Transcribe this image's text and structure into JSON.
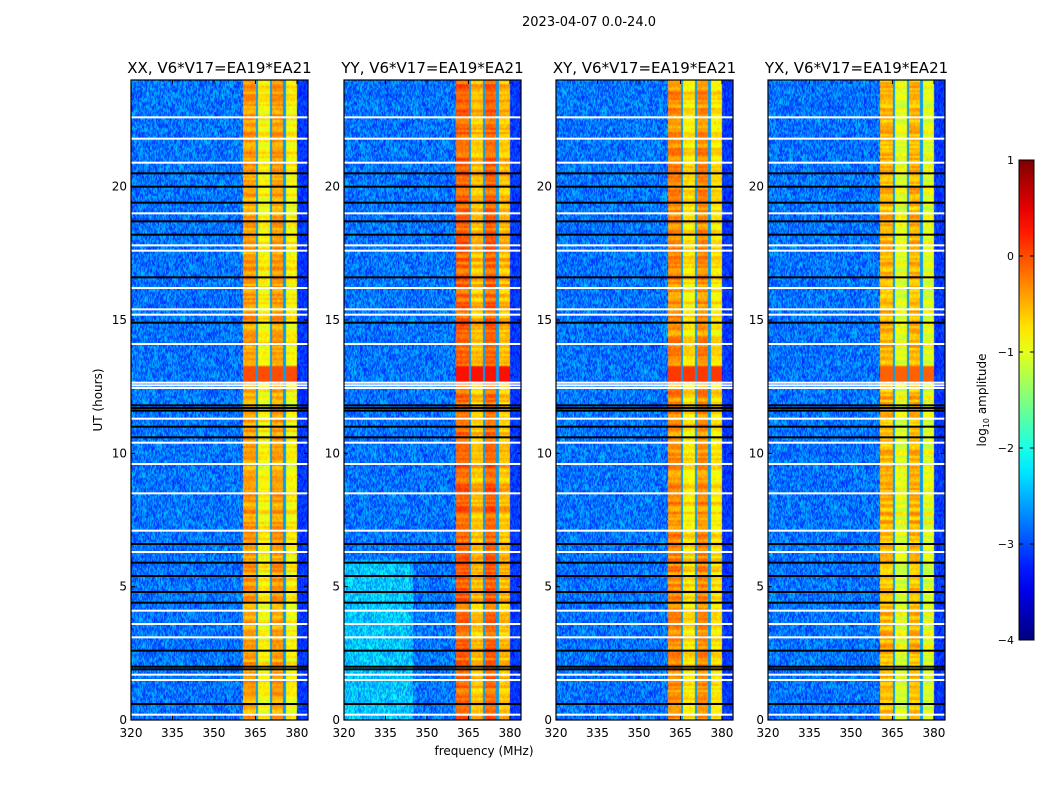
{
  "chart_data": {
    "type": "heatmap",
    "title": "2023-04-07 0.0-24.0",
    "xlabel": "frequency (MHz)",
    "ylabel": "UT (hours)",
    "xlim": [
      320,
      384
    ],
    "ylim": [
      0,
      24
    ],
    "xticks": [
      320,
      335,
      350,
      365,
      380
    ],
    "yticks": [
      0,
      5,
      10,
      15,
      20
    ],
    "colormap": "jet",
    "colorbar": {
      "label": "log10 amplitude",
      "label_main": "log",
      "label_sub": "10",
      "label_rest": " amplitude",
      "range": [
        -4,
        1
      ],
      "ticks": [
        1,
        0,
        -1,
        -2,
        -3,
        -4
      ],
      "tick_labels": [
        "1",
        "0",
        "−1",
        "−2",
        "−3",
        "−4"
      ]
    },
    "background_level": -2.8,
    "band": {
      "start_mhz": 360.5,
      "end_mhz": 380,
      "notches_mhz": [
        365.5,
        370.5,
        375.5
      ]
    },
    "flagged_rows_white_hours": [
      0.2,
      1.5,
      1.7,
      3.1,
      3.6,
      4.1,
      6.3,
      7.1,
      8.5,
      9.6,
      10.4,
      11.3,
      12.45,
      12.55,
      12.65,
      14.1,
      15.2,
      15.4,
      16.2,
      17.6,
      17.8,
      19.0,
      20.9,
      21.8,
      22.6
    ],
    "flagged_rows_black_hours": [
      0.6,
      1.9,
      2.0,
      2.6,
      4.4,
      4.8,
      5.4,
      5.9,
      6.6,
      10.6,
      11.0,
      11.6,
      11.7,
      11.8,
      14.9,
      16.6,
      18.2,
      18.7,
      19.4,
      20.0,
      20.5
    ],
    "panels": [
      {
        "title": "XX, V6*V17=EA19*EA21",
        "band_level": -0.85,
        "hot_level": -0.3
      },
      {
        "title": "YY, V6*V17=EA19*EA21",
        "band_level": -0.55,
        "hot_level": 0.0
      },
      {
        "title": "XY, V6*V17=EA19*EA21",
        "band_level": -0.75,
        "hot_level": -0.2
      },
      {
        "title": "YX, V6*V17=EA19*EA21",
        "band_level": -1.0,
        "hot_level": -0.4
      }
    ]
  }
}
